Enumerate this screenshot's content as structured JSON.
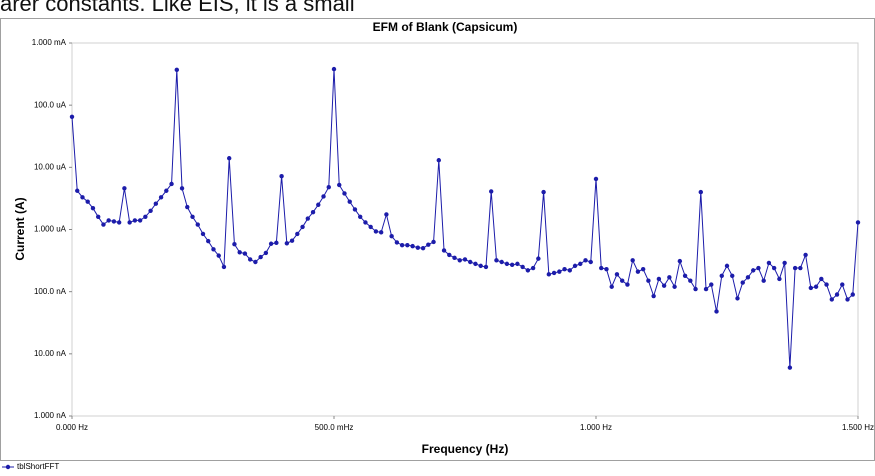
{
  "caption": "arer constants. Like EIS, it is a small",
  "chart_data": {
    "type": "line",
    "title": "EFM of Blank (Capsicum)",
    "x_label": "Frequency (Hz)",
    "y_label": "Current (A)",
    "xlim": [
      0,
      1.5
    ],
    "ylim": [
      1e-09,
      0.001
    ],
    "log_y": true,
    "grid": false,
    "legend": "bottom-left",
    "xticks": [
      {
        "value": 0,
        "label": "0.000 Hz"
      },
      {
        "value": 0.5,
        "label": "500.0 mHz"
      },
      {
        "value": 1,
        "label": "1.000 Hz"
      },
      {
        "value": 1.5,
        "label": "1.500 Hz"
      }
    ],
    "yticks": [
      {
        "value": 1e-09,
        "label": "1.000 nA"
      },
      {
        "value": 1e-08,
        "label": "10.00 nA"
      },
      {
        "value": 1e-07,
        "label": "100.0 nA"
      },
      {
        "value": 1e-06,
        "label": "1.000 uA"
      },
      {
        "value": 1e-05,
        "label": "10.00 uA"
      },
      {
        "value": 0.0001,
        "label": "100.0 uA"
      },
      {
        "value": 0.001,
        "label": "1.000 mA"
      }
    ],
    "x": [
      0,
      0.01,
      0.02,
      0.03,
      0.04,
      0.05,
      0.06,
      0.07,
      0.08,
      0.09,
      0.1,
      0.11,
      0.12,
      0.13,
      0.14,
      0.15,
      0.16,
      0.17,
      0.18,
      0.19,
      0.2,
      0.21,
      0.22,
      0.23,
      0.24,
      0.25,
      0.26,
      0.27,
      0.28,
      0.29,
      0.3,
      0.31,
      0.32,
      0.33,
      0.34,
      0.35,
      0.36,
      0.37,
      0.38,
      0.39,
      0.4,
      0.41,
      0.42,
      0.43,
      0.44,
      0.45,
      0.46,
      0.47,
      0.48,
      0.49,
      0.5,
      0.51,
      0.52,
      0.53,
      0.54,
      0.55,
      0.56,
      0.57,
      0.58,
      0.59,
      0.6,
      0.61,
      0.62,
      0.63,
      0.64,
      0.65,
      0.66,
      0.67,
      0.68,
      0.69,
      0.7,
      0.71,
      0.72,
      0.73,
      0.74,
      0.75,
      0.76,
      0.77,
      0.78,
      0.79,
      0.8,
      0.81,
      0.82,
      0.83,
      0.84,
      0.85,
      0.86,
      0.87,
      0.88,
      0.89,
      0.9,
      0.91,
      0.92,
      0.93,
      0.94,
      0.95,
      0.96,
      0.97,
      0.98,
      0.99,
      1.0,
      1.01,
      1.02,
      1.03,
      1.04,
      1.05,
      1.06,
      1.07,
      1.08,
      1.09,
      1.1,
      1.11,
      1.12,
      1.13,
      1.14,
      1.15,
      1.16,
      1.17,
      1.18,
      1.19,
      1.2,
      1.21,
      1.22,
      1.23,
      1.24,
      1.25,
      1.26,
      1.27,
      1.28,
      1.29,
      1.3,
      1.31,
      1.32,
      1.33,
      1.34,
      1.35,
      1.36,
      1.37,
      1.38,
      1.39,
      1.4,
      1.41,
      1.42,
      1.43,
      1.44,
      1.45,
      1.46,
      1.47,
      1.48,
      1.49,
      1.5
    ],
    "series": [
      {
        "name": "tblShortFFT",
        "color": "#1c1caa",
        "values": [
          6.5e-05,
          4.2e-06,
          3.3e-06,
          2.8e-06,
          2.2e-06,
          1.6e-06,
          1.2e-06,
          1.4e-06,
          1.35e-06,
          1.3e-06,
          4.6e-06,
          1.3e-06,
          1.4e-06,
          1.4e-06,
          1.6e-06,
          2e-06,
          2.6e-06,
          3.3e-06,
          4.2e-06,
          5.4e-06,
          0.00037,
          4.6e-06,
          2.3e-06,
          1.6e-06,
          1.2e-06,
          8.5e-07,
          6.5e-07,
          4.8e-07,
          3.8e-07,
          2.5e-07,
          1.4e-05,
          5.8e-07,
          4.3e-07,
          4.1e-07,
          3.3e-07,
          3e-07,
          3.6e-07,
          4.2e-07,
          5.9e-07,
          6.1e-07,
          7.2e-06,
          6e-07,
          6.6e-07,
          8.5e-07,
          1.1e-06,
          1.5e-06,
          1.9e-06,
          2.5e-06,
          3.4e-06,
          4.8e-06,
          0.00038,
          5.2e-06,
          3.8e-06,
          2.8e-06,
          2.1e-06,
          1.6e-06,
          1.3e-06,
          1.1e-06,
          9.3e-07,
          9e-07,
          1.75e-06,
          7.8e-07,
          6.2e-07,
          5.6e-07,
          5.6e-07,
          5.4e-07,
          5.1e-07,
          5e-07,
          5.7e-07,
          6.3e-07,
          1.3e-05,
          4.6e-07,
          3.9e-07,
          3.5e-07,
          3.2e-07,
          3.3e-07,
          3e-07,
          2.8e-07,
          2.6e-07,
          2.5e-07,
          4.1e-06,
          3.2e-07,
          3e-07,
          2.8e-07,
          2.7e-07,
          2.8e-07,
          2.5e-07,
          2.2e-07,
          2.4e-07,
          3.4e-07,
          4e-06,
          1.9e-07,
          2e-07,
          2.1e-07,
          2.3e-07,
          2.2e-07,
          2.6e-07,
          2.8e-07,
          3.2e-07,
          3e-07,
          6.5e-06,
          2.4e-07,
          2.3e-07,
          1.2e-07,
          1.9e-07,
          1.5e-07,
          1.3e-07,
          3.2e-07,
          2.1e-07,
          2.3e-07,
          1.5e-07,
          8.5e-08,
          1.6e-07,
          1.25e-07,
          1.7e-07,
          1.2e-07,
          3.1e-07,
          1.8e-07,
          1.5e-07,
          1.1e-07,
          4e-06,
          1.1e-07,
          1.3e-07,
          4.8e-08,
          1.8e-07,
          2.6e-07,
          1.8e-07,
          7.8e-08,
          1.4e-07,
          1.7e-07,
          2.2e-07,
          2.4e-07,
          1.5e-07,
          2.9e-07,
          2.4e-07,
          1.6e-07,
          2.9e-07,
          6e-09,
          2.4e-07,
          2.4e-07,
          3.9e-07,
          1.15e-07,
          1.2e-07,
          1.6e-07,
          1.3e-07,
          7.5e-08,
          9e-08,
          1.3e-07,
          7.5e-08,
          9e-08,
          1.3e-06
        ]
      }
    ]
  }
}
